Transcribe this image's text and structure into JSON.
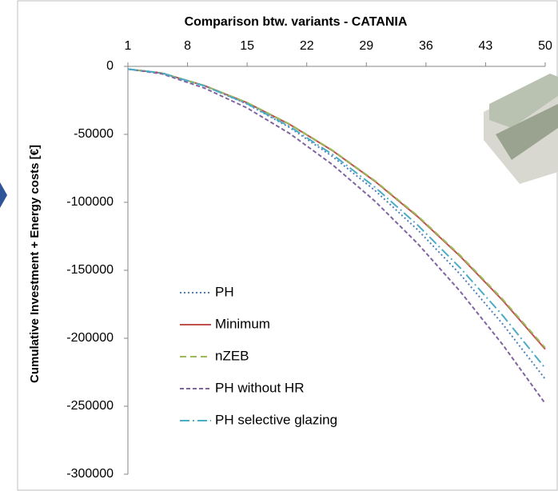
{
  "chart_data": {
    "type": "line",
    "title": "Comparison btw. variants - CATANIA",
    "y_label": "Cumulative Investment + Energy costs [€]",
    "x": [
      1,
      5,
      10,
      15,
      20,
      25,
      30,
      35,
      40,
      45,
      50
    ],
    "xlim": [
      1,
      50
    ],
    "xticks": [
      1,
      8,
      15,
      22,
      29,
      36,
      43,
      50
    ],
    "ylim": [
      -300000,
      0
    ],
    "yticks": [
      0,
      -50000,
      -100000,
      -150000,
      -200000,
      -250000,
      -300000
    ],
    "series": [
      {
        "name": "PH",
        "color": "#4f81bd",
        "dash": "2 3",
        "values": [
          -2000,
          -4800,
          -14300,
          -27700,
          -45000,
          -66200,
          -91200,
          -120100,
          -152800,
          -189500,
          -230000
        ]
      },
      {
        "name": "Minimum",
        "color": "#c0504d",
        "dash": "none",
        "values": [
          -2000,
          -5000,
          -14200,
          -26800,
          -42700,
          -61900,
          -84500,
          -110400,
          -139600,
          -172100,
          -208000
        ]
      },
      {
        "name": "nZEB",
        "color": "#9bbb59",
        "dash": "8 5",
        "values": [
          -2000,
          -5000,
          -14100,
          -26600,
          -42500,
          -61600,
          -84100,
          -109800,
          -138900,
          -171300,
          -207000
        ]
      },
      {
        "name": "PH without HR",
        "color": "#8064a2",
        "dash": "5 3",
        "values": [
          -2000,
          -5500,
          -16000,
          -30600,
          -49400,
          -72200,
          -99100,
          -130200,
          -165400,
          -204600,
          -248000
        ]
      },
      {
        "name": "PH selective glazing",
        "color": "#4bacc6",
        "dash": "12 4 2 4",
        "values": [
          -2000,
          -4900,
          -14400,
          -27500,
          -44300,
          -64700,
          -88800,
          -116600,
          -148100,
          -183200,
          -222000
        ]
      }
    ]
  }
}
